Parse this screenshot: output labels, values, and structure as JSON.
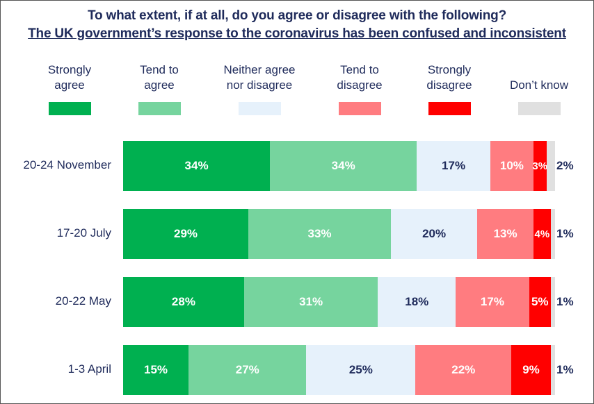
{
  "chart_data": {
    "type": "stacked-bar-horizontal",
    "title": "To what extent, if at all, do you agree or disagree with the following?",
    "subtitle": "The UK government’s response to the coronavirus has been confused and inconsistent",
    "legend": [
      {
        "name": "Strongly agree",
        "line1": "Strongly",
        "line2": "agree",
        "color": "#00b050"
      },
      {
        "name": "Tend to agree",
        "line1": "Tend to",
        "line2": "agree",
        "color": "#76d49e"
      },
      {
        "name": "Neither agree nor disagree",
        "line1": "Neither agree",
        "line2": "nor disagree",
        "color": "#e6f1fb"
      },
      {
        "name": "Tend to disagree",
        "line1": "Tend to",
        "line2": "disagree",
        "color": "#ff7c80"
      },
      {
        "name": "Strongly disagree",
        "line1": "Strongly",
        "line2": "disagree",
        "color": "#ff0000"
      },
      {
        "name": "Don’t know",
        "line1": "",
        "line2": "Don’t know",
        "color": "#e0e0e0"
      }
    ],
    "categories": [
      "20-24 November",
      "17-20 July",
      "20-22 May",
      "1-3 April"
    ],
    "series": [
      {
        "name": "Strongly agree",
        "values": [
          34,
          29,
          28,
          15
        ],
        "labels": [
          "34%",
          "29%",
          "28%",
          "15%"
        ]
      },
      {
        "name": "Tend to agree",
        "values": [
          34,
          33,
          31,
          27
        ],
        "labels": [
          "34%",
          "33%",
          "31%",
          "27%"
        ]
      },
      {
        "name": "Neither agree nor disagree",
        "values": [
          17,
          20,
          18,
          25
        ],
        "labels": [
          "17%",
          "20%",
          "18%",
          "25%"
        ]
      },
      {
        "name": "Tend to disagree",
        "values": [
          10,
          13,
          17,
          22
        ],
        "labels": [
          "10%",
          "13%",
          "17%",
          "22%"
        ]
      },
      {
        "name": "Strongly disagree",
        "values": [
          3,
          4,
          5,
          9
        ],
        "labels": [
          "3%",
          "4%",
          "5%",
          "9%"
        ]
      },
      {
        "name": "Don’t know",
        "values": [
          2,
          1,
          1,
          1
        ],
        "labels": [
          "2%",
          "1%",
          "1%",
          "1%"
        ]
      }
    ],
    "label_colors": [
      "#ffffff",
      "#ffffff",
      "#1f2b5b",
      "#ffffff",
      "#ffffff",
      "#1f2b5b"
    ]
  }
}
